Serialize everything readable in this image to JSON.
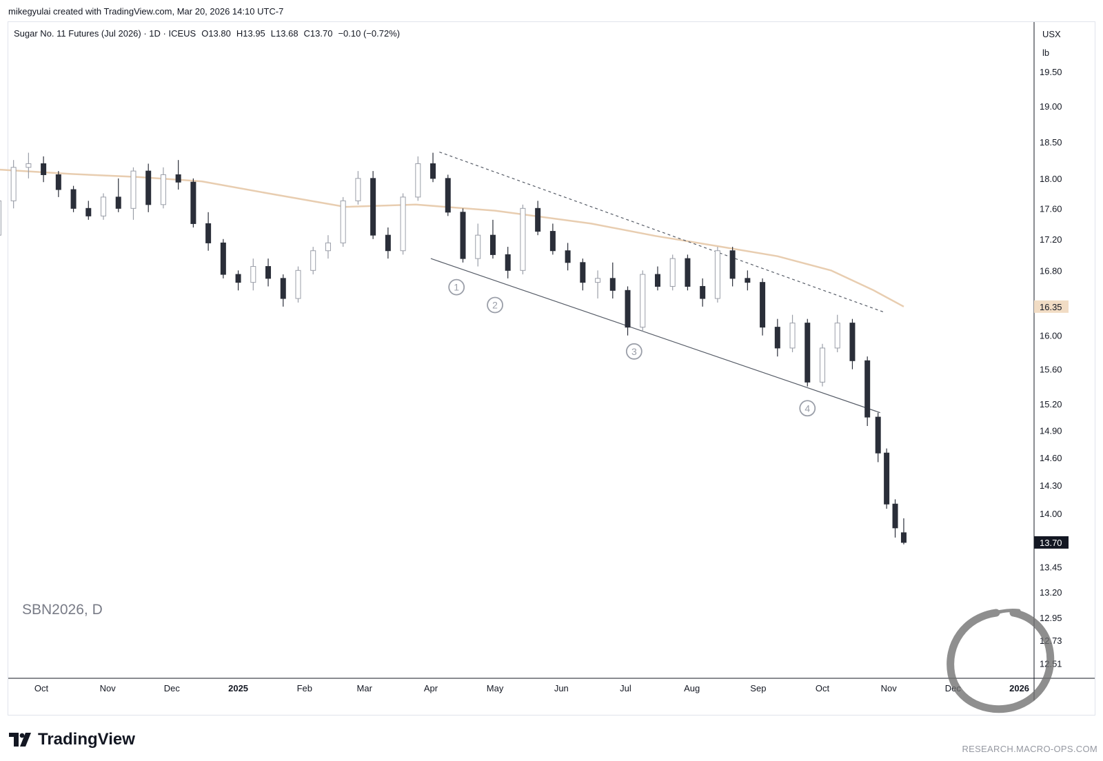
{
  "header": {
    "created_by": "mikegyulai created with TradingView.com, Mar 20, 2026 14:10 UTC-7"
  },
  "branding": {
    "logo_text": "TradingView",
    "watermark_url": "RESEARCH.MACRO-OPS.COM"
  },
  "chart_data": {
    "type": "candlestick",
    "title": "Sugar No. 11 Futures (Jul 2026) · 1D · ICEUS",
    "ohlc": {
      "open": "O13.80",
      "high": "H13.95",
      "low": "L13.68",
      "close": "C13.70",
      "change": "−0.10 (−0.72%)"
    },
    "symbol_watermark": "SBN2026, D",
    "currency": "USX",
    "unit": "lb",
    "price_axis": {
      "scale": "log",
      "ticks": [
        19.5,
        19.0,
        18.5,
        18.0,
        17.6,
        17.2,
        16.8,
        16.0,
        15.6,
        15.2,
        14.9,
        14.6,
        14.3,
        14.0,
        13.45,
        13.2,
        12.95,
        12.73,
        12.51
      ],
      "tick_labels": [
        "19.50",
        "19.00",
        "18.50",
        "18.00",
        "17.60",
        "17.20",
        "16.80",
        "16.00",
        "15.60",
        "15.20",
        "14.90",
        "14.60",
        "14.30",
        "14.00",
        "13.45",
        "13.20",
        "12.95",
        "12.73",
        "12.51"
      ]
    },
    "time_axis": {
      "ticks": [
        {
          "label": "Oct",
          "date": "2024-10-01",
          "bold": false
        },
        {
          "label": "Nov",
          "date": "2024-11-01",
          "bold": false
        },
        {
          "label": "Dec",
          "date": "2024-12-01",
          "bold": false
        },
        {
          "label": "2025",
          "date": "2025-01-01",
          "bold": true
        },
        {
          "label": "Feb",
          "date": "2025-02-01",
          "bold": false
        },
        {
          "label": "Mar",
          "date": "2025-03-01",
          "bold": false
        },
        {
          "label": "Apr",
          "date": "2025-04-01",
          "bold": false
        },
        {
          "label": "May",
          "date": "2025-05-01",
          "bold": false
        },
        {
          "label": "Jun",
          "date": "2025-06-01",
          "bold": false
        },
        {
          "label": "Jul",
          "date": "2025-07-01",
          "bold": false
        },
        {
          "label": "Aug",
          "date": "2025-08-01",
          "bold": false
        },
        {
          "label": "Sep",
          "date": "2025-09-01",
          "bold": false
        },
        {
          "label": "Oct",
          "date": "2025-10-01",
          "bold": false
        },
        {
          "label": "Nov",
          "date": "2025-11-01",
          "bold": false
        },
        {
          "label": "Dec",
          "date": "2025-12-01",
          "bold": false
        },
        {
          "label": "2026",
          "date": "2026-01-01",
          "bold": true
        }
      ]
    },
    "price_badges": [
      {
        "label": "16.35",
        "value": 16.35,
        "style": "moving-average"
      },
      {
        "label": "13.70",
        "value": 13.7,
        "style": "last-price"
      }
    ],
    "moving_average": {
      "color": "#e8cdb0",
      "points": [
        {
          "date": "2024-09-11",
          "value": 18.12
        },
        {
          "date": "2024-10-15",
          "value": 18.06
        },
        {
          "date": "2024-11-15",
          "value": 18.02
        },
        {
          "date": "2024-12-15",
          "value": 17.96
        },
        {
          "date": "2025-01-15",
          "value": 17.8
        },
        {
          "date": "2025-02-20",
          "value": 17.62
        },
        {
          "date": "2025-03-25",
          "value": 17.65
        },
        {
          "date": "2025-05-01",
          "value": 17.57
        },
        {
          "date": "2025-06-15",
          "value": 17.4
        },
        {
          "date": "2025-07-15",
          "value": 17.24
        },
        {
          "date": "2025-08-15",
          "value": 17.1
        },
        {
          "date": "2025-09-10",
          "value": 16.98
        },
        {
          "date": "2025-10-05",
          "value": 16.8
        },
        {
          "date": "2025-10-25",
          "value": 16.55
        },
        {
          "date": "2025-11-08",
          "value": 16.35
        }
      ]
    },
    "trendlines": [
      {
        "name": "upper-resistance",
        "style": "dashed",
        "start": {
          "date": "2025-04-05",
          "value": 18.36
        },
        "end": {
          "date": "2025-10-30",
          "value": 16.28
        }
      },
      {
        "name": "lower-support",
        "style": "solid",
        "start": {
          "date": "2025-04-01",
          "value": 16.95
        },
        "end": {
          "date": "2025-10-28",
          "value": 15.1
        }
      }
    ],
    "wave_labels": [
      {
        "label": "1",
        "date": "2025-04-13",
        "value": 16.59
      },
      {
        "label": "2",
        "date": "2025-05-01",
        "value": 16.37
      },
      {
        "label": "3",
        "date": "2025-07-05",
        "value": 15.81
      },
      {
        "label": "4",
        "date": "2025-09-24",
        "value": 15.15
      }
    ],
    "candles": [
      {
        "date": "2024-09-11",
        "open": 17.25,
        "high": 17.8,
        "low": 17.15,
        "close": 17.7
      },
      {
        "date": "2024-09-18",
        "open": 17.7,
        "high": 18.25,
        "low": 17.6,
        "close": 18.15
      },
      {
        "date": "2024-09-25",
        "open": 18.15,
        "high": 18.35,
        "low": 18.0,
        "close": 18.2
      },
      {
        "date": "2024-10-02",
        "open": 18.2,
        "high": 18.3,
        "low": 17.95,
        "close": 18.05
      },
      {
        "date": "2024-10-09",
        "open": 18.05,
        "high": 18.1,
        "low": 17.75,
        "close": 17.85
      },
      {
        "date": "2024-10-16",
        "open": 17.85,
        "high": 17.9,
        "low": 17.55,
        "close": 17.6
      },
      {
        "date": "2024-10-23",
        "open": 17.6,
        "high": 17.7,
        "low": 17.45,
        "close": 17.5
      },
      {
        "date": "2024-10-30",
        "open": 17.5,
        "high": 17.8,
        "low": 17.45,
        "close": 17.75
      },
      {
        "date": "2024-11-06",
        "open": 17.75,
        "high": 18.0,
        "low": 17.55,
        "close": 17.6
      },
      {
        "date": "2024-11-13",
        "open": 17.6,
        "high": 18.15,
        "low": 17.45,
        "close": 18.1
      },
      {
        "date": "2024-11-20",
        "open": 18.1,
        "high": 18.2,
        "low": 17.55,
        "close": 17.65
      },
      {
        "date": "2024-11-27",
        "open": 17.65,
        "high": 18.15,
        "low": 17.6,
        "close": 18.05
      },
      {
        "date": "2024-12-04",
        "open": 18.05,
        "high": 18.25,
        "low": 17.85,
        "close": 17.95
      },
      {
        "date": "2024-12-11",
        "open": 17.95,
        "high": 18.0,
        "low": 17.35,
        "close": 17.4
      },
      {
        "date": "2024-12-18",
        "open": 17.4,
        "high": 17.55,
        "low": 17.05,
        "close": 17.15
      },
      {
        "date": "2024-12-25",
        "open": 17.15,
        "high": 17.2,
        "low": 16.7,
        "close": 16.75
      },
      {
        "date": "2025-01-01",
        "open": 16.75,
        "high": 16.8,
        "low": 16.55,
        "close": 16.65
      },
      {
        "date": "2025-01-08",
        "open": 16.65,
        "high": 16.95,
        "low": 16.55,
        "close": 16.85
      },
      {
        "date": "2025-01-15",
        "open": 16.85,
        "high": 16.95,
        "low": 16.6,
        "close": 16.7
      },
      {
        "date": "2025-01-22",
        "open": 16.7,
        "high": 16.75,
        "low": 16.35,
        "close": 16.45
      },
      {
        "date": "2025-01-29",
        "open": 16.45,
        "high": 16.85,
        "low": 16.4,
        "close": 16.8
      },
      {
        "date": "2025-02-05",
        "open": 16.8,
        "high": 17.1,
        "low": 16.75,
        "close": 17.05
      },
      {
        "date": "2025-02-12",
        "open": 17.05,
        "high": 17.25,
        "low": 16.95,
        "close": 17.15
      },
      {
        "date": "2025-02-19",
        "open": 17.15,
        "high": 17.75,
        "low": 17.1,
        "close": 17.7
      },
      {
        "date": "2025-02-26",
        "open": 17.7,
        "high": 18.1,
        "low": 17.65,
        "close": 18.0
      },
      {
        "date": "2025-03-05",
        "open": 18.0,
        "high": 18.1,
        "low": 17.2,
        "close": 17.25
      },
      {
        "date": "2025-03-12",
        "open": 17.25,
        "high": 17.35,
        "low": 16.95,
        "close": 17.05
      },
      {
        "date": "2025-03-19",
        "open": 17.05,
        "high": 17.8,
        "low": 17.0,
        "close": 17.75
      },
      {
        "date": "2025-03-26",
        "open": 17.75,
        "high": 18.3,
        "low": 17.7,
        "close": 18.2
      },
      {
        "date": "2025-04-02",
        "open": 18.2,
        "high": 18.35,
        "low": 17.95,
        "close": 18.0
      },
      {
        "date": "2025-04-09",
        "open": 18.0,
        "high": 18.05,
        "low": 17.5,
        "close": 17.55
      },
      {
        "date": "2025-04-16",
        "open": 17.55,
        "high": 17.6,
        "low": 16.9,
        "close": 16.95
      },
      {
        "date": "2025-04-23",
        "open": 16.95,
        "high": 17.4,
        "low": 16.85,
        "close": 17.25
      },
      {
        "date": "2025-04-30",
        "open": 17.25,
        "high": 17.45,
        "low": 16.95,
        "close": 17.0
      },
      {
        "date": "2025-05-07",
        "open": 17.0,
        "high": 17.1,
        "low": 16.7,
        "close": 16.8
      },
      {
        "date": "2025-05-14",
        "open": 16.8,
        "high": 17.65,
        "low": 16.75,
        "close": 17.6
      },
      {
        "date": "2025-05-21",
        "open": 17.6,
        "high": 17.7,
        "low": 17.25,
        "close": 17.3
      },
      {
        "date": "2025-05-28",
        "open": 17.3,
        "high": 17.4,
        "low": 17.0,
        "close": 17.05
      },
      {
        "date": "2025-06-04",
        "open": 17.05,
        "high": 17.15,
        "low": 16.8,
        "close": 16.9
      },
      {
        "date": "2025-06-11",
        "open": 16.9,
        "high": 16.95,
        "low": 16.55,
        "close": 16.65
      },
      {
        "date": "2025-06-18",
        "open": 16.65,
        "high": 16.8,
        "low": 16.45,
        "close": 16.7
      },
      {
        "date": "2025-06-25",
        "open": 16.7,
        "high": 16.9,
        "low": 16.45,
        "close": 16.55
      },
      {
        "date": "2025-07-02",
        "open": 16.55,
        "high": 16.6,
        "low": 16.0,
        "close": 16.1
      },
      {
        "date": "2025-07-09",
        "open": 16.1,
        "high": 16.8,
        "low": 16.05,
        "close": 16.75
      },
      {
        "date": "2025-07-16",
        "open": 16.75,
        "high": 16.85,
        "low": 16.55,
        "close": 16.6
      },
      {
        "date": "2025-07-23",
        "open": 16.6,
        "high": 17.0,
        "low": 16.55,
        "close": 16.95
      },
      {
        "date": "2025-07-30",
        "open": 16.95,
        "high": 17.0,
        "low": 16.55,
        "close": 16.6
      },
      {
        "date": "2025-08-06",
        "open": 16.6,
        "high": 16.7,
        "low": 16.35,
        "close": 16.45
      },
      {
        "date": "2025-08-13",
        "open": 16.45,
        "high": 17.1,
        "low": 16.4,
        "close": 17.05
      },
      {
        "date": "2025-08-20",
        "open": 17.05,
        "high": 17.1,
        "low": 16.6,
        "close": 16.7
      },
      {
        "date": "2025-08-27",
        "open": 16.7,
        "high": 16.8,
        "low": 16.55,
        "close": 16.65
      },
      {
        "date": "2025-09-03",
        "open": 16.65,
        "high": 16.7,
        "low": 16.0,
        "close": 16.1
      },
      {
        "date": "2025-09-10",
        "open": 16.1,
        "high": 16.2,
        "low": 15.75,
        "close": 15.85
      },
      {
        "date": "2025-09-17",
        "open": 15.85,
        "high": 16.25,
        "low": 15.8,
        "close": 16.15
      },
      {
        "date": "2025-09-24",
        "open": 16.15,
        "high": 16.2,
        "low": 15.4,
        "close": 15.45
      },
      {
        "date": "2025-10-01",
        "open": 15.45,
        "high": 15.9,
        "low": 15.4,
        "close": 15.85
      },
      {
        "date": "2025-10-08",
        "open": 15.85,
        "high": 16.25,
        "low": 15.8,
        "close": 16.15
      },
      {
        "date": "2025-10-15",
        "open": 16.15,
        "high": 16.2,
        "low": 15.6,
        "close": 15.7
      },
      {
        "date": "2025-10-22",
        "open": 15.7,
        "high": 15.75,
        "low": 14.95,
        "close": 15.05
      },
      {
        "date": "2025-10-27",
        "open": 15.05,
        "high": 15.1,
        "low": 14.55,
        "close": 14.65
      },
      {
        "date": "2025-10-31",
        "open": 14.65,
        "high": 14.7,
        "low": 14.05,
        "close": 14.1
      },
      {
        "date": "2025-11-04",
        "open": 14.1,
        "high": 14.15,
        "low": 13.75,
        "close": 13.85
      },
      {
        "date": "2025-11-08",
        "open": 13.8,
        "high": 13.95,
        "low": 13.68,
        "close": 13.7
      }
    ]
  }
}
